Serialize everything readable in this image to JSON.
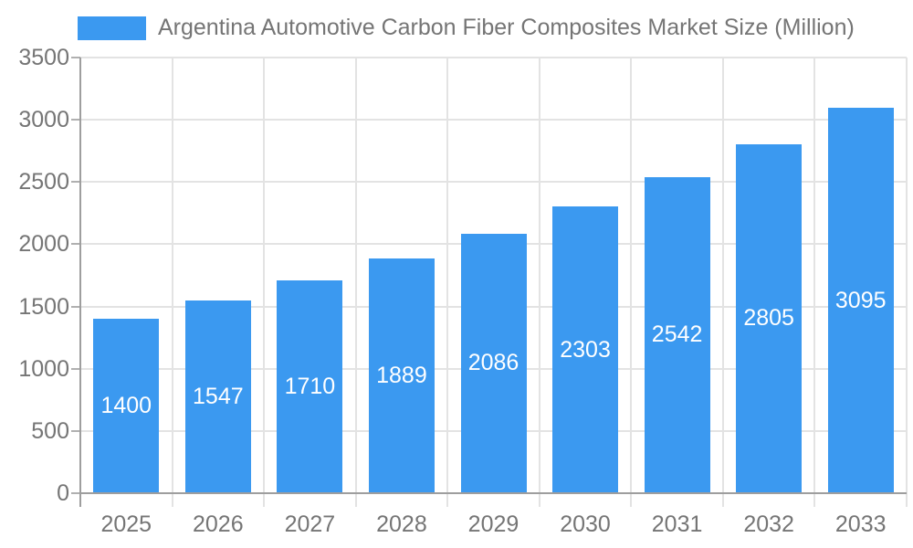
{
  "chart_data": {
    "type": "bar",
    "title": "Argentina Automotive Carbon Fiber Composites Market Size (Million)",
    "legend_entries": [
      "Argentina Automotive Carbon Fiber Composites Market Size (Million)"
    ],
    "legend_position": "top-left",
    "categories": [
      "2025",
      "2026",
      "2027",
      "2028",
      "2029",
      "2030",
      "2031",
      "2032",
      "2033"
    ],
    "series": [
      {
        "name": "Argentina Automotive Carbon Fiber Composites Market Size (Million)",
        "values": [
          1400,
          1547,
          1710,
          1889,
          2086,
          2303,
          2542,
          2805,
          3095
        ]
      }
    ],
    "value_labels_shown": true,
    "xlabel": "",
    "ylabel": "",
    "ylim": [
      0,
      3500
    ],
    "ytick_step": 500,
    "ytick_labels": [
      "0",
      "500",
      "1000",
      "1500",
      "2000",
      "2500",
      "3000",
      "3500"
    ],
    "grid": true,
    "colors": {
      "bar": "#3B99F0",
      "value_label": "#ffffff",
      "axis_text": "#757575",
      "grid_line": "#e3e3e3",
      "axis_line": "#9e9e9e",
      "background": "#ffffff"
    }
  }
}
